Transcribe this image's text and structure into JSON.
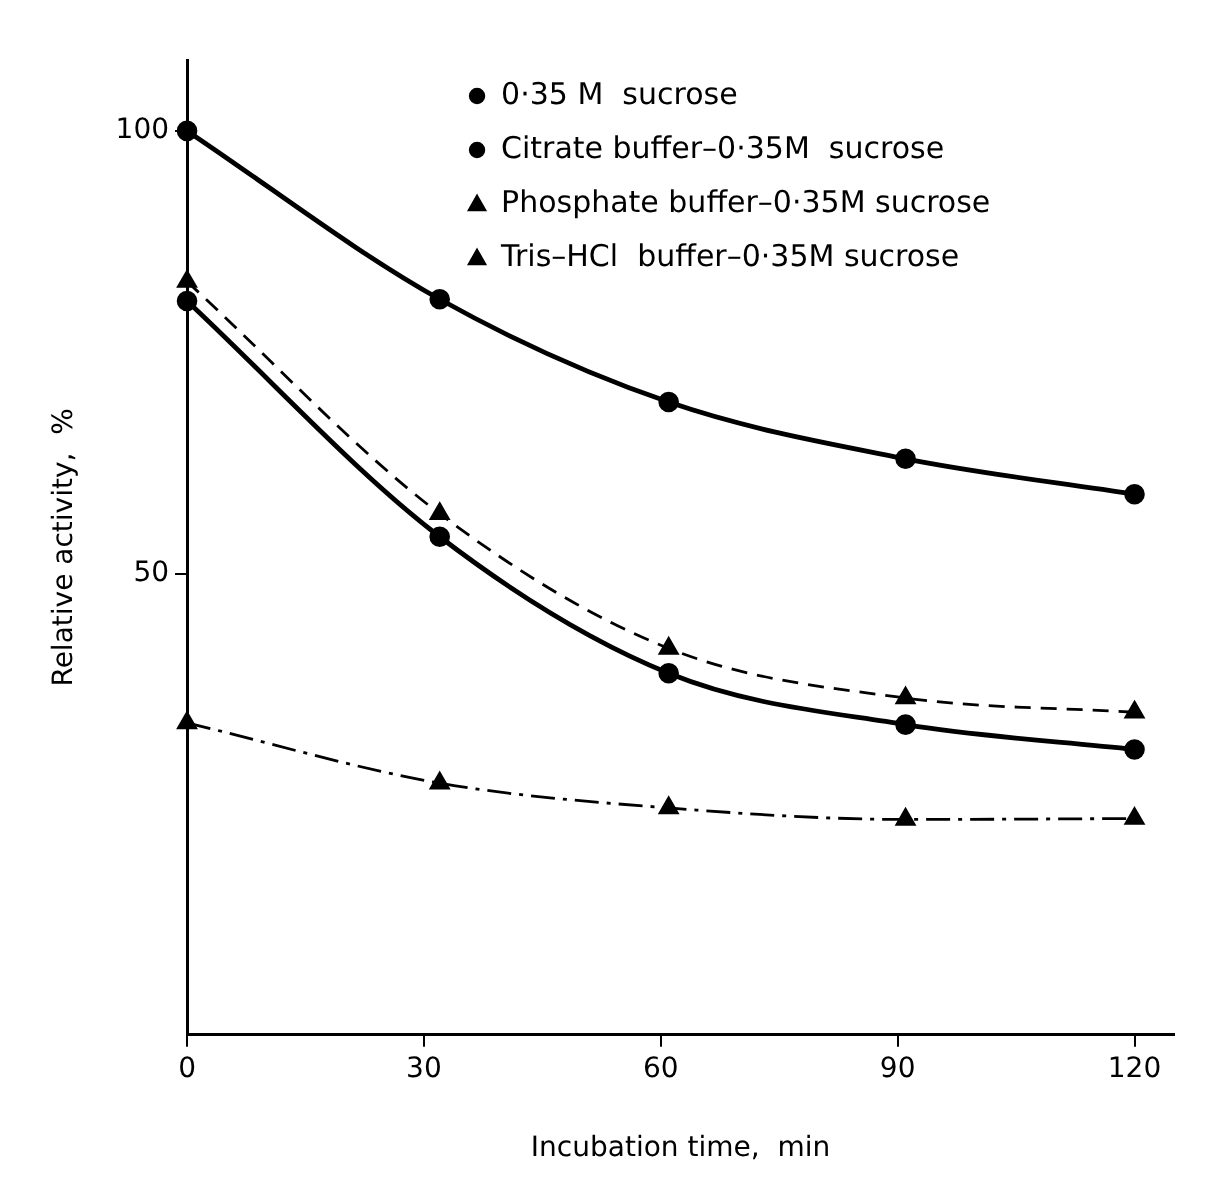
{
  "chart_data": {
    "type": "line",
    "xlabel": "Incubation time,  min",
    "ylabel": "Relative activity,  %",
    "x": [
      0,
      32,
      61,
      91,
      120
    ],
    "xlim": [
      0,
      125
    ],
    "xticks": [
      0,
      30,
      60,
      90,
      120
    ],
    "ylim": [
      -2,
      108
    ],
    "yticks": [
      50,
      100
    ],
    "grid": false,
    "legend": "top right",
    "series": [
      {
        "name": "0·35 M  sucrose",
        "color": "#000000",
        "marker": "circle",
        "line_style": "solid",
        "values": [
          80.8,
          54.2,
          38.8,
          33,
          30.2
        ]
      },
      {
        "name": "Citrate buffer–0·35M  sucrose",
        "color": "#000000",
        "marker": "circle",
        "line_style": "solid",
        "values": [
          100,
          81,
          69.4,
          63,
          59
        ]
      },
      {
        "name": "Phosphate buffer–0·35M sucrose",
        "color": "#000000",
        "marker": "triangle",
        "line_style": "dashdot",
        "values": [
          33.2,
          26.4,
          23.6,
          22.3,
          22.4
        ]
      },
      {
        "name": "Tris–HCl  buffer–0·35M sucrose",
        "color": "#000000",
        "marker": "triangle",
        "line_style": "dashed",
        "values": [
          83,
          56.8,
          41.6,
          36,
          34.4
        ]
      }
    ]
  }
}
